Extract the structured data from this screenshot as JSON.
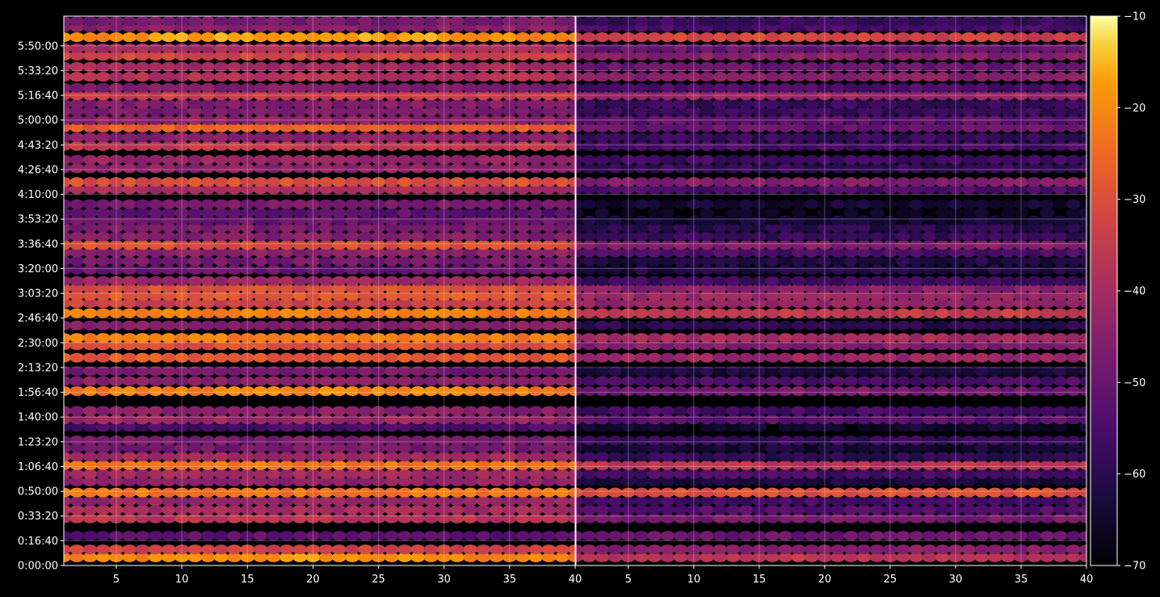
{
  "chart_data": {
    "type": "heatmap",
    "title": "",
    "xlabel": "",
    "ylabel": "",
    "panels": [
      {
        "name": "",
        "x_range": [
          1,
          40
        ],
        "x_ticks": [
          5,
          10,
          15,
          20,
          25,
          30,
          35,
          40
        ]
      },
      {
        "name": "",
        "x_range": [
          1,
          40
        ],
        "x_ticks": [
          5,
          10,
          15,
          20,
          25,
          30,
          35,
          40
        ]
      }
    ],
    "y_range_seconds": [
      0,
      22200
    ],
    "y_ticks": [
      {
        "value": 0,
        "label": "0:00:00"
      },
      {
        "value": 1000,
        "label": "0:16:40"
      },
      {
        "value": 2000,
        "label": "0:33:20"
      },
      {
        "value": 3000,
        "label": "0:50:00"
      },
      {
        "value": 4000,
        "label": "1:06:40"
      },
      {
        "value": 5000,
        "label": "1:23:20"
      },
      {
        "value": 6000,
        "label": "1:40:00"
      },
      {
        "value": 7000,
        "label": "1:56:40"
      },
      {
        "value": 8000,
        "label": "2:13:20"
      },
      {
        "value": 9000,
        "label": "2:30:00"
      },
      {
        "value": 10000,
        "label": "2:46:40"
      },
      {
        "value": 11000,
        "label": "3:03:20"
      },
      {
        "value": 12000,
        "label": "3:20:00"
      },
      {
        "value": 13000,
        "label": "3:36:40"
      },
      {
        "value": 14000,
        "label": "3:53:20"
      },
      {
        "value": 15000,
        "label": "4:10:00"
      },
      {
        "value": 16000,
        "label": "4:26:40"
      },
      {
        "value": 17000,
        "label": "4:43:20"
      },
      {
        "value": 18000,
        "label": "5:00:00"
      },
      {
        "value": 19000,
        "label": "5:16:40"
      },
      {
        "value": 20000,
        "label": "5:33:20"
      },
      {
        "value": 21000,
        "label": "5:50:00"
      }
    ],
    "colorbar": {
      "colormap": "inferno",
      "range": [
        -70,
        -10
      ],
      "ticks": [
        {
          "value": -10,
          "label": "−10"
        },
        {
          "value": -20,
          "label": "−20"
        },
        {
          "value": -30,
          "label": "−30"
        },
        {
          "value": -40,
          "label": "−40"
        },
        {
          "value": -50,
          "label": "−50"
        },
        {
          "value": -60,
          "label": "−60"
        },
        {
          "value": -70,
          "label": "−70"
        }
      ]
    },
    "grid": true,
    "bands": [
      {
        "t": 330,
        "p1": -18,
        "p2": -35,
        "tilt": -4
      },
      {
        "t": 650,
        "p1": -33,
        "p2": -45,
        "tilt": 0
      },
      {
        "t": 1200,
        "p1": -52,
        "p2": -50,
        "tilt": 0
      },
      {
        "t": 1900,
        "p1": -37,
        "p2": -48,
        "tilt": 0
      },
      {
        "t": 2250,
        "p1": -40,
        "p2": -53,
        "tilt": 0
      },
      {
        "t": 2600,
        "p1": -43,
        "p2": -56,
        "tilt": 0
      },
      {
        "t": 2950,
        "p1": -23,
        "p2": -30,
        "tilt": 0
      },
      {
        "t": 3400,
        "p1": -44,
        "p2": -63,
        "tilt": 0
      },
      {
        "t": 3700,
        "p1": -41,
        "p2": -55,
        "tilt": 0
      },
      {
        "t": 4050,
        "p1": -23,
        "p2": -36,
        "tilt": 0
      },
      {
        "t": 4400,
        "p1": -42,
        "p2": -60,
        "tilt": 2
      },
      {
        "t": 4750,
        "p1": -48,
        "p2": -64,
        "tilt": 0
      },
      {
        "t": 5050,
        "p1": -47,
        "p2": -58,
        "tilt": 0
      },
      {
        "t": 5600,
        "p1": -55,
        "p2": -65,
        "tilt": 0
      },
      {
        "t": 5900,
        "p1": -42,
        "p2": -52,
        "tilt": 0
      },
      {
        "t": 6250,
        "p1": -45,
        "p2": -56,
        "tilt": 0
      },
      {
        "t": 7050,
        "p1": -20,
        "p2": -47,
        "tilt": -3
      },
      {
        "t": 7450,
        "p1": -45,
        "p2": -55,
        "tilt": 0
      },
      {
        "t": 7850,
        "p1": -48,
        "p2": -62,
        "tilt": 0
      },
      {
        "t": 8400,
        "p1": -28,
        "p2": -42,
        "tilt": 0
      },
      {
        "t": 8900,
        "p1": -30,
        "p2": -46,
        "tilt": 0
      },
      {
        "t": 9200,
        "p1": -22,
        "p2": -40,
        "tilt": 0
      },
      {
        "t": 9700,
        "p1": -45,
        "p2": -60,
        "tilt": 0
      },
      {
        "t": 10200,
        "p1": -22,
        "p2": -35,
        "tilt": 0
      },
      {
        "t": 10600,
        "p1": -33,
        "p2": -43,
        "tilt": 0
      },
      {
        "t": 10900,
        "p1": -28,
        "p2": -42,
        "tilt": 0
      },
      {
        "t": 11200,
        "p1": -30,
        "p2": -45,
        "tilt": 0
      },
      {
        "t": 11500,
        "p1": -42,
        "p2": -57,
        "tilt": 0
      },
      {
        "t": 11950,
        "p1": -50,
        "p2": -62,
        "tilt": 0
      },
      {
        "t": 12300,
        "p1": -48,
        "p2": -62,
        "tilt": 0
      },
      {
        "t": 12650,
        "p1": -45,
        "p2": -55,
        "tilt": 0
      },
      {
        "t": 12950,
        "p1": -30,
        "p2": -46,
        "tilt": 0
      },
      {
        "t": 13300,
        "p1": -46,
        "p2": -58,
        "tilt": 0
      },
      {
        "t": 13650,
        "p1": -47,
        "p2": -60,
        "tilt": 0
      },
      {
        "t": 13950,
        "p1": -50,
        "p2": -64,
        "tilt": 0
      },
      {
        "t": 14250,
        "p1": -52,
        "p2": -66,
        "tilt": 0
      },
      {
        "t": 14600,
        "p1": -48,
        "p2": -64,
        "tilt": 0
      },
      {
        "t": 15200,
        "p1": -40,
        "p2": -55,
        "tilt": 0
      },
      {
        "t": 15500,
        "p1": -30,
        "p2": -46,
        "tilt": 0
      },
      {
        "t": 16050,
        "p1": -44,
        "p2": -58,
        "tilt": 0
      },
      {
        "t": 16400,
        "p1": -43,
        "p2": -57,
        "tilt": 0
      },
      {
        "t": 16950,
        "p1": -35,
        "p2": -55,
        "tilt": 0
      },
      {
        "t": 17300,
        "p1": -45,
        "p2": -58,
        "tilt": 0
      },
      {
        "t": 17700,
        "p1": -27,
        "p2": -50,
        "tilt": 0
      },
      {
        "t": 18000,
        "p1": -44,
        "p2": -52,
        "tilt": 0
      },
      {
        "t": 18350,
        "p1": -47,
        "p2": -58,
        "tilt": 0
      },
      {
        "t": 18650,
        "p1": -46,
        "p2": -58,
        "tilt": 0
      },
      {
        "t": 19000,
        "p1": -34,
        "p2": -42,
        "tilt": 0
      },
      {
        "t": 19300,
        "p1": -46,
        "p2": -55,
        "tilt": 0
      },
      {
        "t": 19750,
        "p1": -38,
        "p2": -45,
        "tilt": 0
      },
      {
        "t": 20150,
        "p1": -40,
        "p2": -50,
        "tilt": 0
      },
      {
        "t": 20600,
        "p1": -32,
        "p2": -45,
        "tilt": 0
      },
      {
        "t": 20900,
        "p1": -40,
        "p2": -50,
        "tilt": 0
      },
      {
        "t": 21350,
        "p1": -16,
        "p2": -30,
        "tilt": -4
      },
      {
        "t": 21750,
        "p1": -45,
        "p2": -55,
        "tilt": 0
      },
      {
        "t": 22000,
        "p1": -48,
        "p2": -58,
        "tilt": 0
      }
    ]
  }
}
